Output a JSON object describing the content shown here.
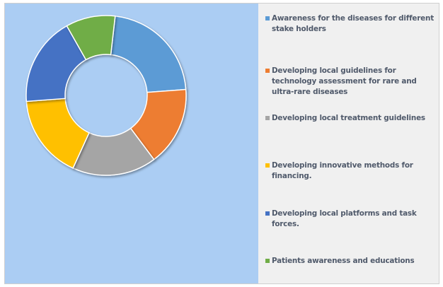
{
  "chart_data": {
    "type": "donut",
    "title": "",
    "legend_position": "right",
    "series": [
      {
        "name": "",
        "categories": [
          "Awareness for the diseases  for different stake holders",
          "Developing local guidelines for  technology assessment for rare and ultra-rare diseases",
          "Developing local treatment guidelines",
          "Developing innovative methods for financing.",
          "Developing local platforms and task forces.",
          "Patients awareness and educations"
        ],
        "values": [
          22,
          16,
          17,
          17,
          18,
          10
        ],
        "colors": [
          "#5b9bd5",
          "#ed7d31",
          "#a5a5a5",
          "#ffc000",
          "#4472c4",
          "#70ad47"
        ]
      }
    ]
  }
}
